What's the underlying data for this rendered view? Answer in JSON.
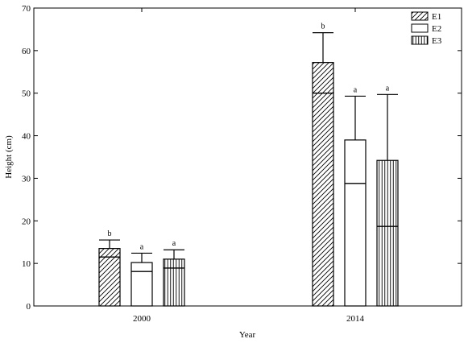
{
  "chart_data": {
    "type": "bar",
    "categories": [
      "2000",
      "2014"
    ],
    "xlabel": "Year",
    "ylabel": "Height (cm)",
    "ylim": [
      0,
      70
    ],
    "yticks": [
      "0",
      "10",
      "20",
      "30",
      "40",
      "50",
      "60",
      "70"
    ],
    "legend_position": "top-right",
    "series": [
      {
        "name": "E1",
        "pattern": "diagonal-hatch",
        "values": [
          13.5,
          57.2
        ],
        "inner_line": [
          11.5,
          50.0
        ],
        "error_top": [
          15.5,
          64.2
        ],
        "letters": [
          "b",
          "b"
        ]
      },
      {
        "name": "E2",
        "pattern": "none",
        "values": [
          10.2,
          39.0
        ],
        "inner_line": [
          8.1,
          28.8
        ],
        "error_top": [
          12.4,
          49.3
        ],
        "letters": [
          "a",
          "a"
        ]
      },
      {
        "name": "E3",
        "pattern": "vertical-lines",
        "values": [
          11.0,
          34.2
        ],
        "inner_line": [
          8.9,
          18.7
        ],
        "error_top": [
          13.2,
          49.7
        ],
        "letters": [
          "a",
          "a"
        ]
      }
    ]
  }
}
